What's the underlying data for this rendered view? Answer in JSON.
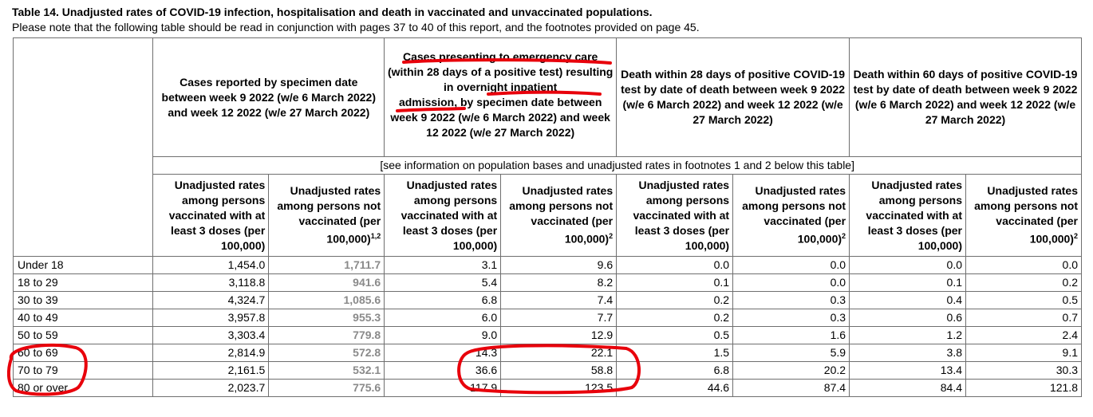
{
  "title": "Table 14. Unadjusted rates of COVID-19 infection, hospitalisation and death in vaccinated and unvaccinated populations.",
  "subtitle": "Please note that the following table should be read in conjunction with pages 37 to 40 of this report, and the footnotes provided on page 45.",
  "groups": [
    {
      "label": "Cases reported by specimen date between week 9 2022 (w/e 6 March 2022) and week 12 2022 (w/e 27 March 2022)"
    },
    {
      "label_part1": "Cases presenting to emergency care",
      "label_part2": "(within 28 days of a positive test) resulting in ",
      "label_part3": "overnight inpatient",
      "label_part4": "admission",
      "label_part5": ", by specimen date between week 9 2022 (w/e 6 March 2022) and week 12 2022 (w/e 27 March 2022)"
    },
    {
      "label": "Death within 28 days of positive COVID-19 test by date of death between week 9 2022 (w/e 6 March 2022) and week 12 2022 (w/e 27 March 2022)"
    },
    {
      "label": "Death within 60 days of positive COVID-19 test by date of death between week 9 2022 (w/e 6 March 2022) and week 12 2022 (w/e 27 March 2022)"
    }
  ],
  "population_note": "[see information on population bases and unadjusted rates in footnotes 1 and 2 below this table]",
  "subheaders": [
    {
      "text": "Unadjusted rates among persons vaccinated with at least 3 doses (per 100,000)",
      "sup": ""
    },
    {
      "text": "Unadjusted rates among persons not vaccinated (per 100,000)",
      "sup": "1,2"
    },
    {
      "text": "Unadjusted rates among persons vaccinated with at least 3 doses (per 100,000)",
      "sup": ""
    },
    {
      "text": "Unadjusted rates among persons not vaccinated (per 100,000)",
      "sup": "2"
    },
    {
      "text": "Unadjusted rates among persons vaccinated with at least 3 doses (per 100,000)",
      "sup": ""
    },
    {
      "text": "Unadjusted rates among persons not vaccinated (per 100,000)",
      "sup": "2"
    },
    {
      "text": "Unadjusted rates among persons vaccinated with at least 3 doses (per 100,000)",
      "sup": ""
    },
    {
      "text": "Unadjusted rates among persons not vaccinated (per 100,000)",
      "sup": "2"
    }
  ],
  "rows": [
    {
      "age": "Under 18",
      "values": [
        "1,454.0",
        "1,711.7",
        "3.1",
        "9.6",
        "0.0",
        "0.0",
        "0.0",
        "0.0"
      ]
    },
    {
      "age": "18 to 29",
      "values": [
        "3,118.8",
        "941.6",
        "5.4",
        "8.2",
        "0.1",
        "0.0",
        "0.1",
        "0.2"
      ]
    },
    {
      "age": "30 to 39",
      "values": [
        "4,324.7",
        "1,085.6",
        "6.8",
        "7.4",
        "0.2",
        "0.3",
        "0.4",
        "0.5"
      ]
    },
    {
      "age": "40 to 49",
      "values": [
        "3,957.8",
        "955.3",
        "6.0",
        "7.7",
        "0.2",
        "0.3",
        "0.6",
        "0.7"
      ]
    },
    {
      "age": "50 to 59",
      "values": [
        "3,303.4",
        "779.8",
        "9.0",
        "12.9",
        "0.5",
        "1.6",
        "1.2",
        "2.4"
      ]
    },
    {
      "age": "60 to 69",
      "values": [
        "2,814.9",
        "572.8",
        "14.3",
        "22.1",
        "1.5",
        "5.9",
        "3.8",
        "9.1"
      ]
    },
    {
      "age": "70 to 79",
      "values": [
        "2,161.5",
        "532.1",
        "36.6",
        "58.8",
        "6.8",
        "20.2",
        "13.4",
        "30.3"
      ]
    },
    {
      "age": "80 or over",
      "values": [
        "2,023.7",
        "775.6",
        "117.9",
        "123.5",
        "44.6",
        "87.4",
        "84.4",
        "121.8"
      ]
    }
  ],
  "colors": {
    "annotation": "#e8000b",
    "grey_values": "#8a8a8a",
    "border": "#6f6f6f"
  }
}
